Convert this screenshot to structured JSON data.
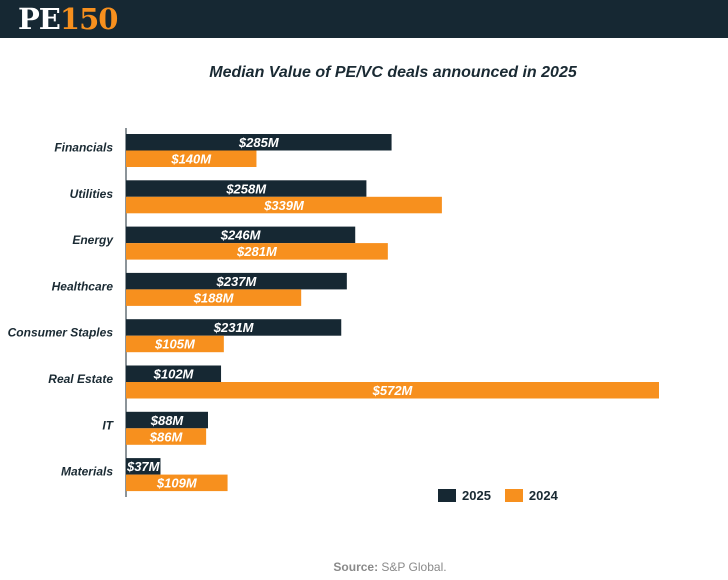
{
  "header": {
    "logo_pe": "PE",
    "logo_num": "150"
  },
  "colors": {
    "header_bg": "#162833",
    "series_2025": "#162833",
    "series_2024": "#f7901e"
  },
  "chart_data": {
    "type": "bar",
    "orientation": "horizontal",
    "title": "Median Value of PE/VC deals announced in 2025",
    "categories": [
      "Financials",
      "Utilities",
      "Energy",
      "Healthcare",
      "Consumer Staples",
      "Real Estate",
      "IT",
      "Materials"
    ],
    "series": [
      {
        "name": "2025",
        "values": [
          285,
          258,
          246,
          237,
          231,
          102,
          88,
          37
        ],
        "labels": [
          "$285M",
          "$258M",
          "$246M",
          "$237M",
          "$231M",
          "$102M",
          "$88M",
          "$37M"
        ]
      },
      {
        "name": "2024",
        "values": [
          140,
          339,
          281,
          188,
          105,
          572,
          86,
          109
        ],
        "labels": [
          "$140M",
          "$339M",
          "$281M",
          "$188M",
          "$105M",
          "$572M",
          "$86M",
          "$109M"
        ]
      }
    ],
    "xlim": [
      0,
      572
    ],
    "grid": false,
    "legend_position": "bottom-right"
  },
  "source": {
    "prefix": "Source:",
    "text": " S&P Global."
  }
}
